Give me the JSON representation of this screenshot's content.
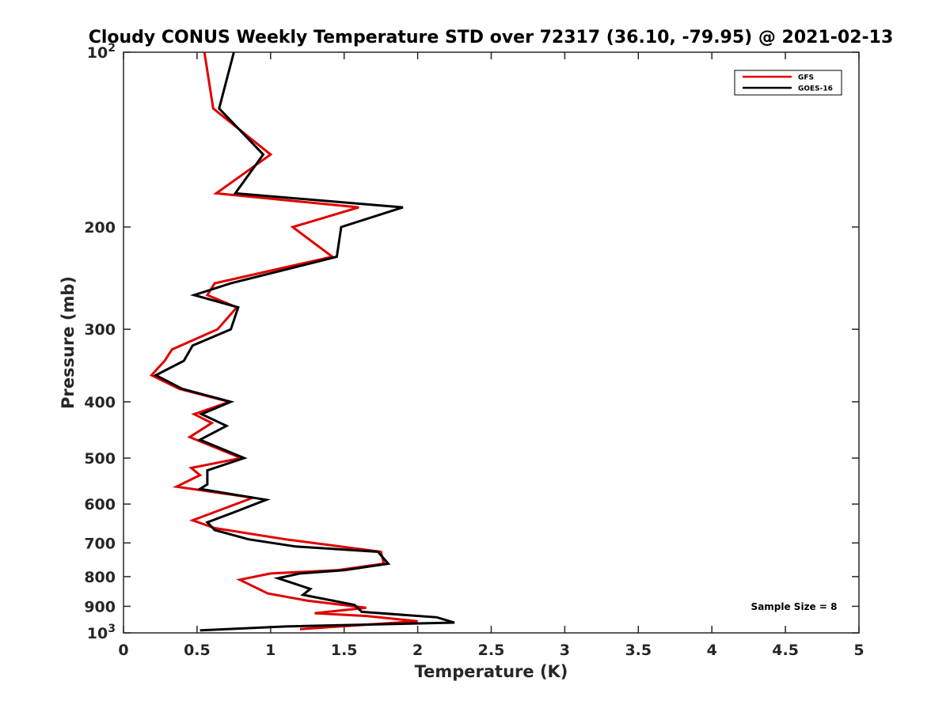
{
  "chart_data": {
    "type": "line",
    "title": "Cloudy CONUS Weekly Temperature STD over 72317 (36.10, -79.95) @ 2021-02-13",
    "xlabel": "Temperature (K)",
    "ylabel": "Pressure (mb)",
    "xlim": [
      0,
      5
    ],
    "ylim": [
      100,
      1000
    ],
    "yscale": "log",
    "yreversed": true,
    "xticks": [
      0,
      0.5,
      1,
      1.5,
      2,
      2.5,
      3,
      3.5,
      4,
      4.5,
      5
    ],
    "xtick_labels": [
      "0",
      "0.5",
      "1",
      "1.5",
      "2",
      "2.5",
      "3",
      "3.5",
      "4",
      "4.5",
      "5"
    ],
    "yticks": [
      100,
      200,
      300,
      400,
      500,
      600,
      700,
      800,
      900,
      1000
    ],
    "ytick_labels": [
      "10^2",
      "200",
      "300",
      "400",
      "500",
      "600",
      "700",
      "800",
      "900",
      "10^3"
    ],
    "legend_position": "top-right",
    "annotation": "Sample Size = 8",
    "series": [
      {
        "name": "GFS",
        "color": "#e00000",
        "points": [
          [
            0.55,
            100
          ],
          [
            0.61,
            125
          ],
          [
            1.0,
            150
          ],
          [
            0.63,
            175
          ],
          [
            1.6,
            185
          ],
          [
            1.15,
            200
          ],
          [
            1.42,
            225
          ],
          [
            0.62,
            250
          ],
          [
            0.57,
            262
          ],
          [
            0.77,
            275
          ],
          [
            0.64,
            300
          ],
          [
            0.33,
            325
          ],
          [
            0.28,
            340
          ],
          [
            0.19,
            360
          ],
          [
            0.38,
            380
          ],
          [
            0.72,
            400
          ],
          [
            0.48,
            420
          ],
          [
            0.6,
            435
          ],
          [
            0.45,
            460
          ],
          [
            0.8,
            500
          ],
          [
            0.46,
            520
          ],
          [
            0.52,
            535
          ],
          [
            0.36,
            560
          ],
          [
            0.88,
            585
          ],
          [
            0.47,
            640
          ],
          [
            0.62,
            660
          ],
          [
            1.1,
            690
          ],
          [
            1.75,
            725
          ],
          [
            1.77,
            760
          ],
          [
            1.45,
            780
          ],
          [
            1.0,
            790
          ],
          [
            0.79,
            810
          ],
          [
            0.98,
            855
          ],
          [
            1.25,
            880
          ],
          [
            1.65,
            905
          ],
          [
            1.3,
            925
          ],
          [
            1.65,
            935
          ],
          [
            2.0,
            955
          ],
          [
            1.2,
            985
          ]
        ]
      },
      {
        "name": "GOES-16",
        "color": "#000000",
        "points": [
          [
            0.75,
            100
          ],
          [
            0.65,
            125
          ],
          [
            0.95,
            150
          ],
          [
            0.76,
            175
          ],
          [
            1.9,
            185
          ],
          [
            1.48,
            200
          ],
          [
            1.45,
            225
          ],
          [
            0.73,
            250
          ],
          [
            0.48,
            262
          ],
          [
            0.78,
            275
          ],
          [
            0.73,
            300
          ],
          [
            0.47,
            320
          ],
          [
            0.41,
            340
          ],
          [
            0.22,
            360
          ],
          [
            0.4,
            380
          ],
          [
            0.73,
            400
          ],
          [
            0.53,
            420
          ],
          [
            0.7,
            440
          ],
          [
            0.52,
            465
          ],
          [
            0.82,
            500
          ],
          [
            0.57,
            525
          ],
          [
            0.57,
            555
          ],
          [
            0.52,
            565
          ],
          [
            0.97,
            590
          ],
          [
            0.75,
            620
          ],
          [
            0.57,
            645
          ],
          [
            0.62,
            665
          ],
          [
            0.85,
            690
          ],
          [
            1.17,
            710
          ],
          [
            1.73,
            725
          ],
          [
            1.8,
            760
          ],
          [
            1.5,
            780
          ],
          [
            1.2,
            790
          ],
          [
            1.05,
            805
          ],
          [
            1.27,
            840
          ],
          [
            1.22,
            860
          ],
          [
            1.57,
            895
          ],
          [
            1.62,
            920
          ],
          [
            2.13,
            940
          ],
          [
            2.25,
            960
          ],
          [
            1.1,
            975
          ],
          [
            0.52,
            990
          ]
        ]
      }
    ]
  }
}
